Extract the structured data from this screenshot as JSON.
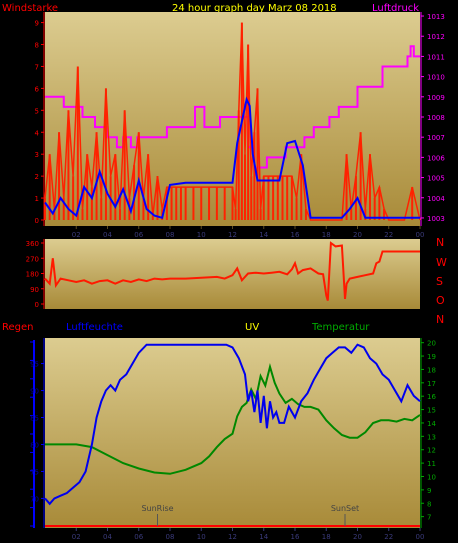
{
  "header": {
    "title": "24 hour graph day   Marz 08 2018",
    "left_label": "Windstarke",
    "right_label": "Luftdruck"
  },
  "direction_labels": [
    "N",
    "W",
    "S",
    "O",
    "N"
  ],
  "bottom_labels": {
    "rain": "Regen",
    "humidity": "Luftfeuchte",
    "uv": "UV",
    "temperature": "Temperatur",
    "sunrise": "SunRise",
    "sunset": "SunSet"
  },
  "colors": {
    "bg_dark": "#000000",
    "panel_top": "#d8c888",
    "panel_bottom": "#a88c3c",
    "wind": "#ff2200",
    "pressure": "#ff00ff",
    "avg_wind": "#0000ff",
    "direction": "#ff1a00",
    "humidity": "#0000ee",
    "temperature": "#008800",
    "title": "#ffff00",
    "left_label": "#ff0000",
    "right_label": "#ff00ff",
    "rain_axis": "#0000ff",
    "rain": "#ff0000",
    "uv": "#ffff00",
    "temperature_axis": "#00aa00"
  },
  "chart_data": [
    {
      "type": "line",
      "name": "wind-and-pressure",
      "x_ticks": [
        "02",
        "04",
        "06",
        "08",
        "10",
        "12",
        "14",
        "16",
        "18",
        "20",
        "22",
        "00"
      ],
      "xlim": [
        0,
        24
      ],
      "left_axis": {
        "label": "Windstarke",
        "ticks": [
          0,
          1,
          2,
          3,
          4,
          5,
          6,
          7,
          8,
          9
        ],
        "range": [
          0,
          9.3
        ]
      },
      "right_axis": {
        "label": "Luftdruck",
        "ticks": [
          1003,
          1004,
          1005,
          1006,
          1007,
          1008,
          1009,
          1010,
          1011,
          1012,
          1013
        ],
        "range": [
          1002.7,
          1013.2
        ]
      },
      "series": [
        {
          "axis": "right",
          "step": true,
          "x": [
            0,
            1.2,
            1.2,
            2.4,
            2.4,
            3.2,
            3.2,
            4.0,
            4.0,
            4.6,
            4.6,
            5.0,
            5.0,
            5.5,
            5.5,
            5.9,
            5.9,
            7.8,
            7.8,
            9.6,
            9.6,
            10.2,
            10.2,
            11.2,
            11.2,
            13.0,
            13.0,
            13.4,
            13.4,
            14.2,
            14.2,
            15.4,
            15.4,
            16.6,
            16.6,
            17.2,
            17.2,
            18.2,
            18.2,
            18.8,
            18.8,
            20.0,
            20.0,
            21.6,
            21.6,
            23.2,
            23.2,
            23.4,
            23.4,
            23.6,
            23.6,
            24
          ],
          "y": [
            1009,
            1009,
            1008.5,
            1008.5,
            1008,
            1008,
            1007.5,
            1007.5,
            1007,
            1007,
            1006.5,
            1006.5,
            1007,
            1007,
            1006.5,
            1006.5,
            1007,
            1007,
            1007.5,
            1007.5,
            1008.5,
            1008.5,
            1007.5,
            1007.5,
            1008,
            1008,
            1006.5,
            1006.5,
            1005.5,
            1005.5,
            1006,
            1006,
            1006.5,
            1006.5,
            1007,
            1007,
            1007.5,
            1007.5,
            1008,
            1008,
            1008.5,
            1008.5,
            1009.5,
            1009.5,
            1010.5,
            1010.5,
            1011,
            1011,
            1011.5,
            1011.5,
            1011,
            1011
          ]
        },
        {
          "axis": "left",
          "y_sample_note": "",
          "x": [
            0,
            0.3,
            0.6,
            0.9,
            1.2,
            1.5,
            1.8,
            2.1,
            2.4,
            2.7,
            3.0,
            3.3,
            3.6,
            3.9,
            4.2,
            4.5,
            4.8,
            5.1,
            5.4,
            5.7,
            6.0,
            6.3,
            6.6,
            6.9,
            7.2,
            7.5,
            7.8,
            8.1,
            8.4,
            8.7,
            9.0,
            9.5,
            10.0,
            10.5,
            11.0,
            11.5,
            12.0,
            12.2,
            12.4,
            12.6,
            12.8,
            13.0,
            13.2,
            13.4,
            13.6,
            13.8,
            14.0,
            14.3,
            14.6,
            14.9,
            15.2,
            15.5,
            15.8,
            16.1,
            16.4,
            16.7,
            17.0,
            17.5,
            18.0,
            18.5,
            19.0,
            19.3,
            19.6,
            19.9,
            20.2,
            20.5,
            20.8,
            21.1,
            21.4,
            21.7,
            22.0,
            22.5,
            23.0,
            23.5,
            24
          ],
          "y": [
            1,
            3,
            0.5,
            4,
            1,
            5,
            2,
            7,
            0.5,
            3,
            1.5,
            4,
            1,
            6,
            2,
            3,
            0.5,
            5,
            1,
            2.5,
            4,
            1,
            3,
            0.2,
            2,
            0.5,
            1.5,
            1.5,
            1.5,
            1.5,
            1.5,
            1.5,
            1.5,
            1.5,
            1.5,
            1.5,
            1.5,
            0.5,
            5,
            9,
            3,
            8,
            2,
            4,
            6,
            0.5,
            2,
            2,
            2,
            2,
            2,
            2,
            2,
            1,
            3,
            0.5,
            0,
            0,
            0,
            0,
            0,
            3,
            0.5,
            2,
            4,
            0.5,
            3,
            1,
            1.5,
            0.5,
            0,
            0,
            0,
            1.5,
            0
          ]
        },
        {
          "axis": "left",
          "x": [
            0,
            0.5,
            1.0,
            1.5,
            2.0,
            2.5,
            3.0,
            3.5,
            4.0,
            4.5,
            5.0,
            5.5,
            6.0,
            6.5,
            7.0,
            7.5,
            8.0,
            9.0,
            10.0,
            11.0,
            12.0,
            12.3,
            12.6,
            12.9,
            13.1,
            13.3,
            13.6,
            14.0,
            15.0,
            15.5,
            16.0,
            16.5,
            17.0,
            17.5,
            18.0,
            18.5,
            19.0,
            19.5,
            20.0,
            20.5,
            21.0,
            22.0,
            23.0,
            24.0
          ],
          "y": [
            0.8,
            0.3,
            1.0,
            0.5,
            0.2,
            1.5,
            1.0,
            2.2,
            1.2,
            0.6,
            1.4,
            0.4,
            1.8,
            0.5,
            0.2,
            0.1,
            1.6,
            1.7,
            1.7,
            1.7,
            1.7,
            3.5,
            4.5,
            5.5,
            5.2,
            3.0,
            1.8,
            1.8,
            1.8,
            3.5,
            3.6,
            2.5,
            0.1,
            0.1,
            0.1,
            0.1,
            0.1,
            0.5,
            1.0,
            0.1,
            0.1,
            0.1,
            0.1,
            0.1
          ]
        }
      ]
    },
    {
      "type": "line",
      "name": "wind-direction",
      "xlim": [
        0,
        24
      ],
      "y_axis": {
        "ticks": [
          0,
          90,
          180,
          270,
          360
        ],
        "range": [
          0,
          360
        ]
      },
      "series": [
        {
          "x": [
            0,
            0.3,
            0.5,
            0.7,
            1.0,
            1.5,
            2.0,
            2.5,
            3.0,
            3.5,
            4.0,
            4.5,
            5.0,
            5.5,
            6.0,
            6.5,
            7.0,
            7.5,
            8.0,
            9.0,
            10.0,
            11.0,
            11.5,
            12.0,
            12.3,
            12.6,
            13.0,
            13.5,
            14.0,
            14.5,
            15.0,
            15.5,
            15.8,
            16.0,
            16.2,
            16.5,
            17.0,
            17.5,
            17.8,
            18.0,
            18.1,
            18.3,
            18.6,
            19.0,
            19.2,
            19.3,
            19.5,
            20.0,
            20.5,
            21.0,
            21.2,
            21.4,
            21.6,
            22.0,
            23.0,
            24.0
          ],
          "y": [
            150,
            120,
            270,
            110,
            150,
            140,
            130,
            140,
            120,
            135,
            140,
            120,
            140,
            130,
            145,
            135,
            150,
            145,
            150,
            150,
            155,
            160,
            150,
            170,
            210,
            140,
            180,
            185,
            180,
            185,
            190,
            175,
            205,
            240,
            180,
            200,
            210,
            180,
            175,
            50,
            20,
            360,
            340,
            345,
            30,
            120,
            150,
            160,
            170,
            180,
            240,
            250,
            310,
            310,
            310,
            310
          ]
        }
      ]
    },
    {
      "type": "line",
      "name": "humidity-uv-temperature",
      "x_ticks": [
        "02",
        "04",
        "06",
        "08",
        "10",
        "12",
        "14",
        "16",
        "18",
        "20",
        "22",
        "00"
      ],
      "xlim": [
        0,
        24
      ],
      "left_axis": {
        "label": "Luftfeuchte",
        "ticks": [
          70,
          75,
          80,
          85,
          90,
          95
        ],
        "range": [
          66,
          99
        ]
      },
      "right_axis": {
        "label": "Temperatur",
        "ticks": [
          7,
          8,
          9,
          10,
          11,
          12,
          13,
          14,
          15,
          16,
          17,
          18,
          19,
          20
        ],
        "range": [
          6.3,
          20.2
        ]
      },
      "annotations": [
        {
          "text": "SunRise",
          "x": 7.2
        },
        {
          "text": "SunSet",
          "x": 19.2
        }
      ],
      "series": [
        {
          "axis": "left",
          "x": [
            0,
            0.3,
            0.6,
            1.0,
            1.4,
            1.8,
            2.2,
            2.6,
            3.0,
            3.3,
            3.6,
            3.9,
            4.2,
            4.5,
            4.8,
            5.2,
            5.6,
            6.0,
            6.5,
            7.0,
            7.5,
            8.0,
            9.0,
            10.0,
            11.0,
            11.6,
            12.0,
            12.4,
            12.8,
            13.0,
            13.2,
            13.4,
            13.6,
            13.8,
            14.0,
            14.2,
            14.4,
            14.6,
            14.8,
            15.0,
            15.3,
            15.6,
            16.0,
            16.4,
            16.8,
            17.2,
            17.6,
            18.0,
            18.4,
            18.8,
            19.2,
            19.6,
            20.0,
            20.4,
            20.8,
            21.2,
            21.6,
            22.0,
            22.4,
            22.8,
            23.2,
            23.6,
            24.0
          ],
          "y": [
            70,
            69,
            70,
            70.5,
            71,
            72,
            73,
            75,
            80,
            85,
            88,
            90,
            91,
            90,
            92,
            93,
            95,
            97,
            98.5,
            98.5,
            98.5,
            98.5,
            98.5,
            98.5,
            98.5,
            98.5,
            98,
            96,
            93,
            88,
            90,
            86,
            90,
            84,
            89,
            83,
            88,
            85,
            86,
            84,
            84,
            87,
            85,
            88,
            89.5,
            92,
            94,
            96,
            97,
            98,
            98,
            97,
            98.5,
            98,
            96,
            95,
            93,
            92,
            90,
            88,
            91,
            89,
            88
          ]
        },
        {
          "axis": "right",
          "x": [
            0,
            1.0,
            2.0,
            3.0,
            4.0,
            5.0,
            6.0,
            7.0,
            8.0,
            9.0,
            10.0,
            10.5,
            11.0,
            11.5,
            12.0,
            12.3,
            12.6,
            12.9,
            13.2,
            13.5,
            13.8,
            14.1,
            14.4,
            14.7,
            15.0,
            15.4,
            15.8,
            16.2,
            16.6,
            17.0,
            17.5,
            18.0,
            18.5,
            19.0,
            19.5,
            20.0,
            20.5,
            21.0,
            21.5,
            22.0,
            22.5,
            23.0,
            23.5,
            24.0
          ],
          "y": [
            12.4,
            12.4,
            12.4,
            12.2,
            11.6,
            11.0,
            10.6,
            10.3,
            10.2,
            10.5,
            11.0,
            11.5,
            12.2,
            12.8,
            13.2,
            14.5,
            15.2,
            15.5,
            16.5,
            15.8,
            17.5,
            16.8,
            18.2,
            17.0,
            16.2,
            15.5,
            15.8,
            15.4,
            15.2,
            15.2,
            15.0,
            14.2,
            13.6,
            13.1,
            12.9,
            12.9,
            13.3,
            14.0,
            14.2,
            14.2,
            14.1,
            14.3,
            14.2,
            14.6
          ]
        }
      ]
    }
  ]
}
